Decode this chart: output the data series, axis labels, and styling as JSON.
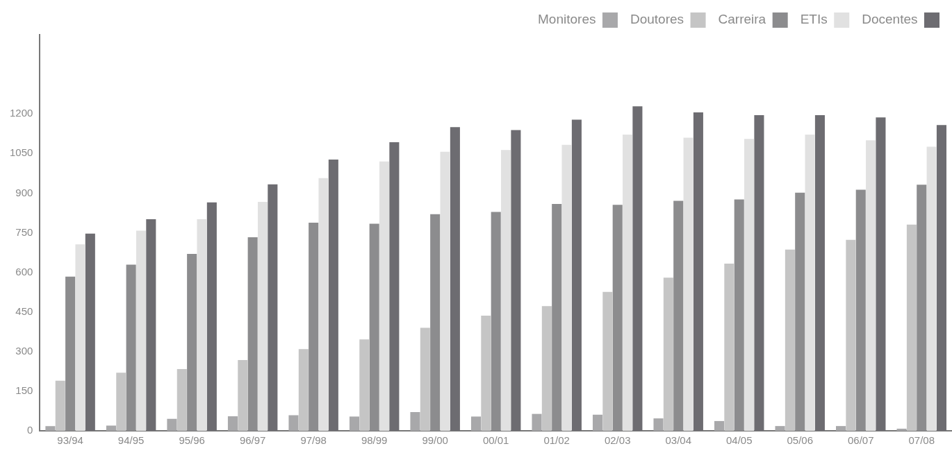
{
  "chart_data": {
    "type": "bar",
    "categories": [
      "93/94",
      "94/95",
      "95/96",
      "96/97",
      "97/98",
      "98/99",
      "99/00",
      "00/01",
      "01/02",
      "02/03",
      "03/04",
      "04/05",
      "05/06",
      "06/07",
      "07/08"
    ],
    "series": [
      {
        "name": "Monitores",
        "color": "#a8a8aa",
        "values": [
          18,
          20,
          45,
          55,
          59,
          54,
          71,
          54,
          64,
          61,
          47,
          37,
          18,
          18,
          8
        ]
      },
      {
        "name": "Doutores",
        "color": "#c5c5c5",
        "values": [
          190,
          220,
          234,
          268,
          309,
          346,
          390,
          436,
          472,
          526,
          580,
          633,
          686,
          723,
          781
        ]
      },
      {
        "name": "Carreira",
        "color": "#8c8c8e",
        "values": [
          584,
          629,
          670,
          733,
          788,
          784,
          820,
          829,
          859,
          856,
          871,
          876,
          902,
          913,
          932
        ]
      },
      {
        "name": "ETIs",
        "color": "#e1e1e1",
        "values": [
          706,
          758,
          801,
          867,
          957,
          1020,
          1057,
          1063,
          1083,
          1122,
          1110,
          1105,
          1122,
          1100,
          1076
        ]
      },
      {
        "name": "Docentes",
        "color": "#6d6c71",
        "values": [
          747,
          801,
          865,
          933,
          1027,
          1093,
          1150,
          1139,
          1178,
          1229,
          1206,
          1195,
          1195,
          1187,
          1158
        ]
      }
    ],
    "ylim": [
      0,
      1500
    ],
    "yticks": [
      0,
      150,
      300,
      450,
      600,
      750,
      900,
      1050,
      1200
    ],
    "grid": false,
    "legend": "top right"
  }
}
